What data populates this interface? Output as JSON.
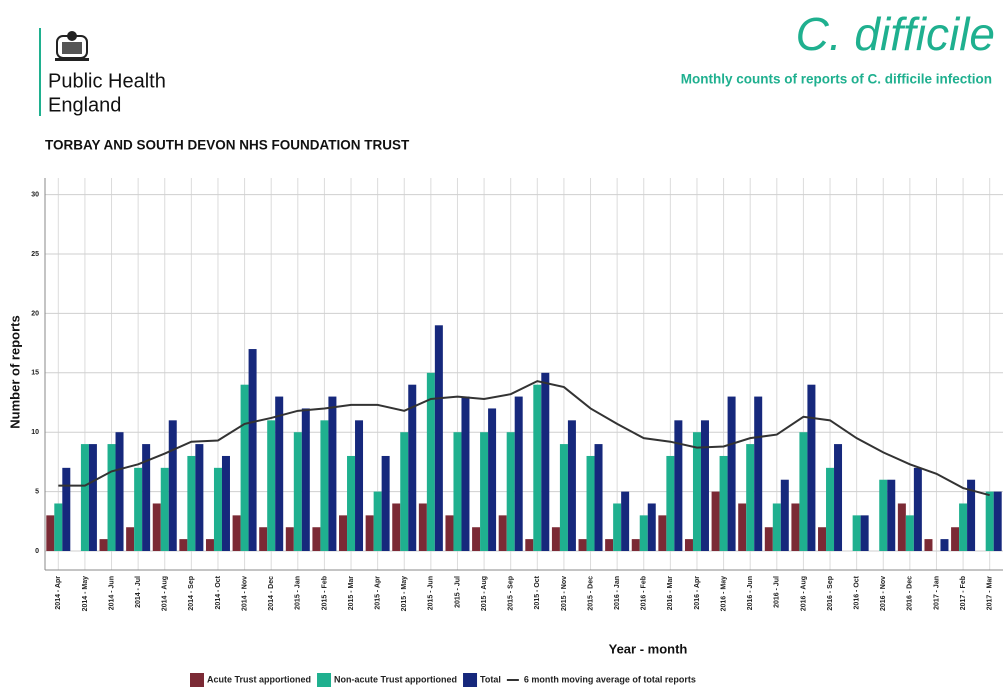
{
  "header": {
    "org_line1": "Public Health",
    "org_line2": "England",
    "trust": "TORBAY AND SOUTH DEVON NHS FOUNDATION TRUST"
  },
  "chart_data": {
    "type": "bar",
    "title": "C. difficile",
    "subtitle": "Monthly counts of reports of C. difficile infection",
    "x_label": "Year - month",
    "y_label": "Number of reports",
    "categories": [
      "2014 - Apr",
      "2014 - May",
      "2014 - Jun",
      "2014 - Jul",
      "2014 - Aug",
      "2014 - Sep",
      "2014 - Oct",
      "2014 - Nov",
      "2014 - Dec",
      "2015 - Jan",
      "2015 - Feb",
      "2015 - Mar",
      "2015 - Apr",
      "2015 - May",
      "2015 - Jun",
      "2015 - Jul",
      "2015 - Aug",
      "2015 - Sep",
      "2015 - Oct",
      "2015 - Nov",
      "2015 - Dec",
      "2016 - Jan",
      "2016 - Feb",
      "2016 - Mar",
      "2016 - Apr",
      "2016 - May",
      "2016 - Jun",
      "2016 - Jul",
      "2016 - Aug",
      "2016 - Sep",
      "2016 - Oct",
      "2016 - Nov",
      "2016 - Dec",
      "2017 - Jan",
      "2017 - Feb",
      "2017 - Mar"
    ],
    "series": [
      {
        "name": "Acute Trust apportioned",
        "color": "#7b2a35",
        "values": [
          3,
          0,
          1,
          2,
          4,
          1,
          1,
          3,
          2,
          2,
          2,
          3,
          3,
          4,
          4,
          3,
          2,
          3,
          1,
          2,
          1,
          1,
          1,
          3,
          1,
          5,
          4,
          2,
          4,
          2,
          0,
          0,
          4,
          1,
          2,
          0
        ]
      },
      {
        "name": "Non-acute Trust apportioned",
        "color": "#1fb08f",
        "values": [
          4,
          9,
          9,
          7,
          7,
          8,
          7,
          14,
          11,
          10,
          11,
          8,
          5,
          10,
          15,
          10,
          10,
          10,
          14,
          9,
          8,
          4,
          3,
          8,
          10,
          8,
          9,
          4,
          10,
          7,
          3,
          6,
          3,
          0,
          4,
          5
        ]
      },
      {
        "name": "Total",
        "color": "#16287c",
        "values": [
          7,
          9,
          10,
          9,
          11,
          9,
          8,
          17,
          13,
          12,
          13,
          11,
          8,
          14,
          19,
          13,
          12,
          13,
          15,
          11,
          9,
          5,
          4,
          11,
          11,
          13,
          13,
          6,
          14,
          9,
          3,
          6,
          7,
          1,
          6,
          5
        ]
      },
      {
        "name": "6 month moving average of total reports",
        "type": "line",
        "color": "#333333",
        "values": [
          5.5,
          5.5,
          6.7,
          7.3,
          8.2,
          9.2,
          9.3,
          10.7,
          11.2,
          11.8,
          12.0,
          12.3,
          12.3,
          11.8,
          12.8,
          13.0,
          12.8,
          13.2,
          14.3,
          13.8,
          12.0,
          10.7,
          9.5,
          9.2,
          8.7,
          8.8,
          9.5,
          9.8,
          11.3,
          11.0,
          9.5,
          8.3,
          7.3,
          6.5,
          5.3,
          4.7
        ]
      }
    ],
    "ylim": [
      -1.6,
      31.4
    ],
    "yticks": [
      0,
      5,
      10,
      15,
      20,
      25,
      30
    ],
    "grid": true,
    "legend": "bottom"
  }
}
